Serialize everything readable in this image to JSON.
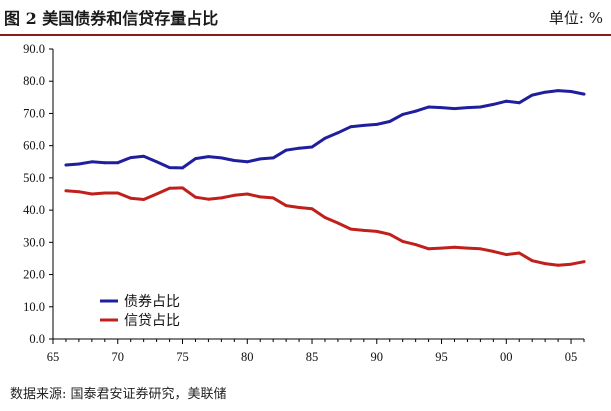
{
  "header": {
    "title": "图 2 美国债券和信贷存量占比",
    "unit": "单位: %"
  },
  "footer": {
    "source": "数据来源: 国泰君安证券研究，美联储"
  },
  "chart_data": {
    "type": "line",
    "x_ticks": [
      65,
      70,
      75,
      80,
      85,
      90,
      95,
      "00",
      "05"
    ],
    "y_ticks": [
      "0.0",
      "10.0",
      "20.0",
      "30.0",
      "40.0",
      "50.0",
      "60.0",
      "70.0",
      "80.0",
      "90.0"
    ],
    "xlim": [
      1965,
      2006
    ],
    "ylim": [
      0,
      90
    ],
    "grid": false,
    "legend_position": "lower-left",
    "x": [
      1966,
      1967,
      1968,
      1969,
      1970,
      1971,
      1972,
      1973,
      1974,
      1975,
      1976,
      1977,
      1978,
      1979,
      1980,
      1981,
      1982,
      1983,
      1984,
      1985,
      1986,
      1987,
      1988,
      1989,
      1990,
      1991,
      1992,
      1993,
      1994,
      1995,
      1996,
      1997,
      1998,
      1999,
      2000,
      2001,
      2002,
      2003,
      2004,
      2005,
      2006
    ],
    "series": [
      {
        "name": "债券占比",
        "color": "#1f1f9e",
        "values": [
          54.0,
          54.3,
          55.0,
          54.7,
          54.7,
          56.3,
          56.7,
          55.0,
          53.2,
          53.1,
          56.0,
          56.6,
          56.2,
          55.4,
          55.0,
          55.9,
          56.2,
          58.6,
          59.2,
          59.6,
          62.3,
          64.0,
          65.9,
          66.3,
          66.6,
          67.5,
          69.7,
          70.7,
          72.0,
          71.8,
          71.5,
          71.8,
          72.0,
          72.8,
          73.8,
          73.3,
          75.7,
          76.6,
          77.1,
          76.8,
          76.0
        ]
      },
      {
        "name": "信贷占比",
        "color": "#c0201c",
        "values": [
          46.0,
          45.7,
          45.0,
          45.3,
          45.3,
          43.7,
          43.3,
          45.0,
          46.8,
          46.9,
          44.0,
          43.4,
          43.8,
          44.6,
          45.0,
          44.1,
          43.8,
          41.4,
          40.8,
          40.4,
          37.7,
          36.0,
          34.1,
          33.7,
          33.4,
          32.5,
          30.3,
          29.3,
          28.0,
          28.2,
          28.5,
          28.2,
          28.0,
          27.2,
          26.2,
          26.7,
          24.3,
          23.4,
          22.9,
          23.2,
          24.0
        ]
      }
    ]
  }
}
